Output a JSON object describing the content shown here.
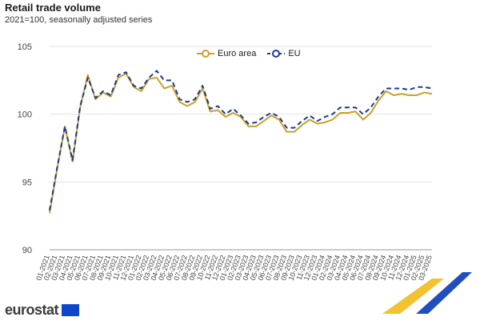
{
  "header": {
    "title": "Retail trade volume",
    "subtitle": "2021=100, seasonally adjusted series"
  },
  "branding": {
    "logo_text": "eurostat"
  },
  "colors": {
    "euro_area": "#c9a227",
    "eu": "#1f3a93",
    "grid": "#e3e3e3",
    "axis_text": "#444444"
  },
  "chart_data": {
    "type": "line",
    "title": "Retail trade volume",
    "subtitle": "2021=100, seasonally adjusted series",
    "xlabel": "",
    "ylabel": "",
    "ylim": [
      90,
      105
    ],
    "yticks": [
      90,
      95,
      100,
      105
    ],
    "grid": true,
    "legend_position": "top-center",
    "x": [
      "01-2021",
      "02-2021",
      "03-2021",
      "04-2021",
      "05-2021",
      "06-2021",
      "07-2021",
      "08-2021",
      "09-2021",
      "10-2021",
      "11-2021",
      "12-2021",
      "01-2022",
      "02-2022",
      "03-2022",
      "04-2022",
      "05-2022",
      "06-2022",
      "07-2022",
      "08-2022",
      "09-2022",
      "10-2022",
      "11-2022",
      "12-2022",
      "01-2023",
      "02-2023",
      "03-2023",
      "04-2023",
      "05-2023",
      "06-2023",
      "07-2023",
      "08-2023",
      "09-2023",
      "10-2023",
      "11-2023",
      "12-2023",
      "01-2024",
      "02-2024",
      "03-2024",
      "04-2024",
      "05-2024",
      "06-2024",
      "07-2024",
      "08-2024",
      "09-2024",
      "10-2024",
      "11-2024",
      "12-2024",
      "01-2025",
      "02-2025",
      "03-2025"
    ],
    "series": [
      {
        "name": "Euro area",
        "style": "solid",
        "values": [
          92.7,
          96.0,
          99.1,
          96.5,
          100.5,
          102.9,
          101.1,
          101.6,
          101.3,
          102.7,
          103.0,
          102.0,
          101.7,
          102.6,
          102.7,
          101.9,
          102.1,
          100.9,
          100.6,
          100.9,
          101.9,
          100.2,
          100.3,
          99.8,
          100.1,
          99.8,
          99.1,
          99.1,
          99.5,
          99.9,
          99.6,
          98.7,
          98.7,
          99.2,
          99.6,
          99.3,
          99.4,
          99.6,
          100.1,
          100.1,
          100.2,
          99.6,
          100.1,
          101.0,
          101.7,
          101.4,
          101.5,
          101.4,
          101.4,
          101.6,
          101.5
        ]
      },
      {
        "name": "EU",
        "style": "dashed",
        "values": [
          92.9,
          96.1,
          99.1,
          96.6,
          100.6,
          102.7,
          101.2,
          101.7,
          101.4,
          102.9,
          103.1,
          102.1,
          101.9,
          102.7,
          103.2,
          102.5,
          102.5,
          101.1,
          100.9,
          101.1,
          102.1,
          100.4,
          100.6,
          100.0,
          100.4,
          99.9,
          99.3,
          99.4,
          99.8,
          100.1,
          99.8,
          99.0,
          99.0,
          99.5,
          99.9,
          99.5,
          99.8,
          100.0,
          100.5,
          100.5,
          100.5,
          100.0,
          100.5,
          101.3,
          101.9,
          101.9,
          101.9,
          101.8,
          102.0,
          102.0,
          101.9
        ]
      }
    ]
  }
}
